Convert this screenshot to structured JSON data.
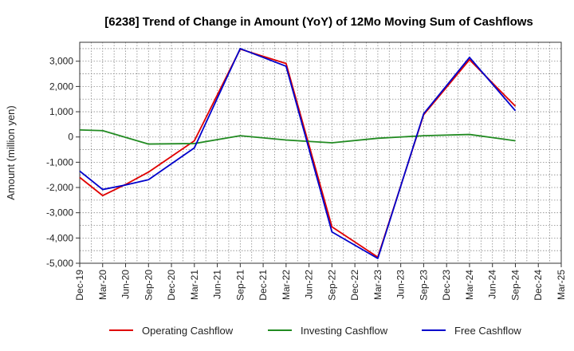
{
  "chart_data": {
    "type": "line",
    "title": "[6238]  Trend of Change in Amount (YoY) of 12Mo Moving Sum of Cashflows",
    "xlabel": "",
    "ylabel": "Amount (million yen)",
    "ylim": [
      -5000,
      3750
    ],
    "yticks": [
      3000,
      2000,
      1000,
      0,
      -1000,
      -2000,
      -3000,
      -4000,
      -5000
    ],
    "ytick_labels": [
      "3,000",
      "2,000",
      "1,000",
      "0",
      "-1,000",
      "-2,000",
      "-3,000",
      "-4,000",
      "-5,000"
    ],
    "categories": [
      "Dec-19",
      "Mar-20",
      "Jun-20",
      "Sep-20",
      "Dec-20",
      "Mar-21",
      "Jun-21",
      "Sep-21",
      "Dec-21",
      "Mar-22",
      "Jun-22",
      "Sep-22",
      "Dec-22",
      "Mar-23",
      "Jun-23",
      "Sep-23",
      "Dec-23",
      "Mar-24",
      "Jun-24",
      "Sep-24",
      "Dec-24",
      "Mar-25"
    ],
    "grid": true,
    "legend_position": "bottom",
    "series": [
      {
        "name": "Operating Cashflow",
        "color": "#e00000",
        "values": [
          -1600,
          -2320,
          -1880,
          -1390,
          null,
          -150,
          null,
          3480,
          null,
          2910,
          null,
          -3560,
          null,
          -4760,
          null,
          880,
          null,
          3060,
          null,
          1220,
          null,
          null
        ]
      },
      {
        "name": "Investing Cashflow",
        "color": "#228b22",
        "values": [
          280,
          250,
          null,
          -280,
          null,
          -260,
          null,
          50,
          null,
          -120,
          null,
          -230,
          null,
          -50,
          null,
          50,
          null,
          100,
          null,
          -150,
          null,
          null
        ]
      },
      {
        "name": "Free Cashflow",
        "color": "#0000cc",
        "values": [
          -1350,
          -2080,
          -1900,
          -1690,
          null,
          -430,
          null,
          3500,
          null,
          2800,
          null,
          -3760,
          null,
          -4810,
          null,
          920,
          null,
          3150,
          null,
          1040,
          null,
          null
        ]
      }
    ]
  }
}
